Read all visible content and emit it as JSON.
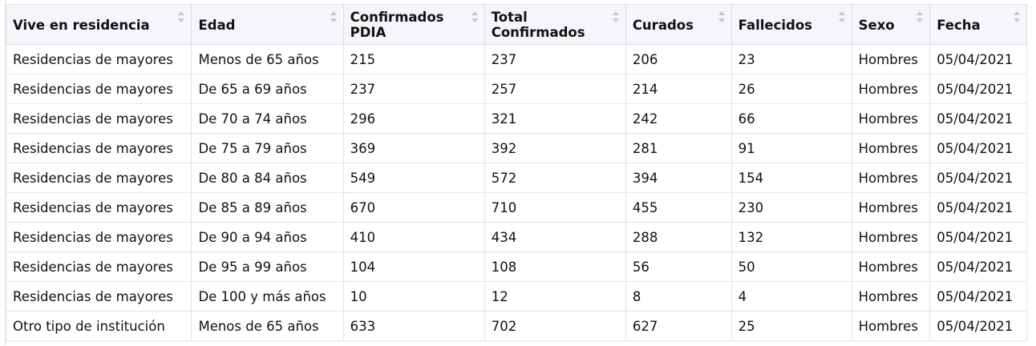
{
  "table": {
    "columns": [
      "Vive en residencia",
      "Edad",
      "Confirmados PDIA",
      "Total Confirmados",
      "Curados",
      "Fallecidos",
      "Sexo",
      "Fecha"
    ],
    "rows": [
      [
        "Residencias de mayores",
        "Menos de 65 años",
        "215",
        "237",
        "206",
        "23",
        "Hombres",
        "05/04/2021"
      ],
      [
        "Residencias de mayores",
        "De 65 a 69 años",
        "237",
        "257",
        "214",
        "26",
        "Hombres",
        "05/04/2021"
      ],
      [
        "Residencias de mayores",
        "De 70 a 74 años",
        "296",
        "321",
        "242",
        "66",
        "Hombres",
        "05/04/2021"
      ],
      [
        "Residencias de mayores",
        "De 75 a 79 años",
        "369",
        "392",
        "281",
        "91",
        "Hombres",
        "05/04/2021"
      ],
      [
        "Residencias de mayores",
        "De 80 a 84 años",
        "549",
        "572",
        "394",
        "154",
        "Hombres",
        "05/04/2021"
      ],
      [
        "Residencias de mayores",
        "De 85 a 89 años",
        "670",
        "710",
        "455",
        "230",
        "Hombres",
        "05/04/2021"
      ],
      [
        "Residencias de mayores",
        "De 90 a 94 años",
        "410",
        "434",
        "288",
        "132",
        "Hombres",
        "05/04/2021"
      ],
      [
        "Residencias de mayores",
        "De 95 a 99 años",
        "104",
        "108",
        "56",
        "50",
        "Hombres",
        "05/04/2021"
      ],
      [
        "Residencias de mayores",
        "De 100 y más años",
        "10",
        "12",
        "8",
        "4",
        "Hombres",
        "05/04/2021"
      ],
      [
        "Otro tipo de institución",
        "Menos de 65 años",
        "633",
        "702",
        "627",
        "25",
        "Hombres",
        "05/04/2021"
      ]
    ]
  },
  "icons": {
    "sort": "sort-updown-icon"
  },
  "colors": {
    "header_bg": "#f4f6f9",
    "border": "#e3e5e8",
    "sort_icon": "#c3c7cd"
  }
}
